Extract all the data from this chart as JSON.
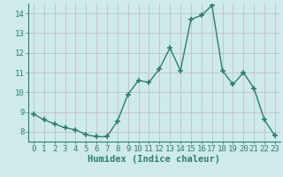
{
  "x": [
    0,
    1,
    2,
    3,
    4,
    5,
    6,
    7,
    8,
    9,
    10,
    11,
    12,
    13,
    14,
    15,
    16,
    17,
    18,
    19,
    20,
    21,
    22,
    23
  ],
  "y": [
    8.9,
    8.6,
    8.4,
    8.2,
    8.1,
    7.85,
    7.75,
    7.75,
    8.55,
    9.9,
    10.6,
    10.5,
    11.2,
    12.25,
    11.1,
    13.7,
    13.9,
    14.4,
    11.1,
    10.4,
    11.0,
    10.2,
    8.6,
    7.8
  ],
  "line_color": "#2e7d6e",
  "marker_color": "#2e7d6e",
  "bg_color": "#ceeaea",
  "grid_color_minor": "#b8d8d8",
  "grid_color_major": "#c0b8b8",
  "xlabel": "Humidex (Indice chaleur)",
  "xlim": [
    -0.5,
    23.5
  ],
  "ylim": [
    7.5,
    14.5
  ],
  "yticks": [
    8,
    9,
    10,
    11,
    12,
    13,
    14
  ],
  "xticks": [
    0,
    1,
    2,
    3,
    4,
    5,
    6,
    7,
    8,
    9,
    10,
    11,
    12,
    13,
    14,
    15,
    16,
    17,
    18,
    19,
    20,
    21,
    22,
    23
  ],
  "xlabel_fontsize": 7.5,
  "tick_fontsize": 6.5
}
